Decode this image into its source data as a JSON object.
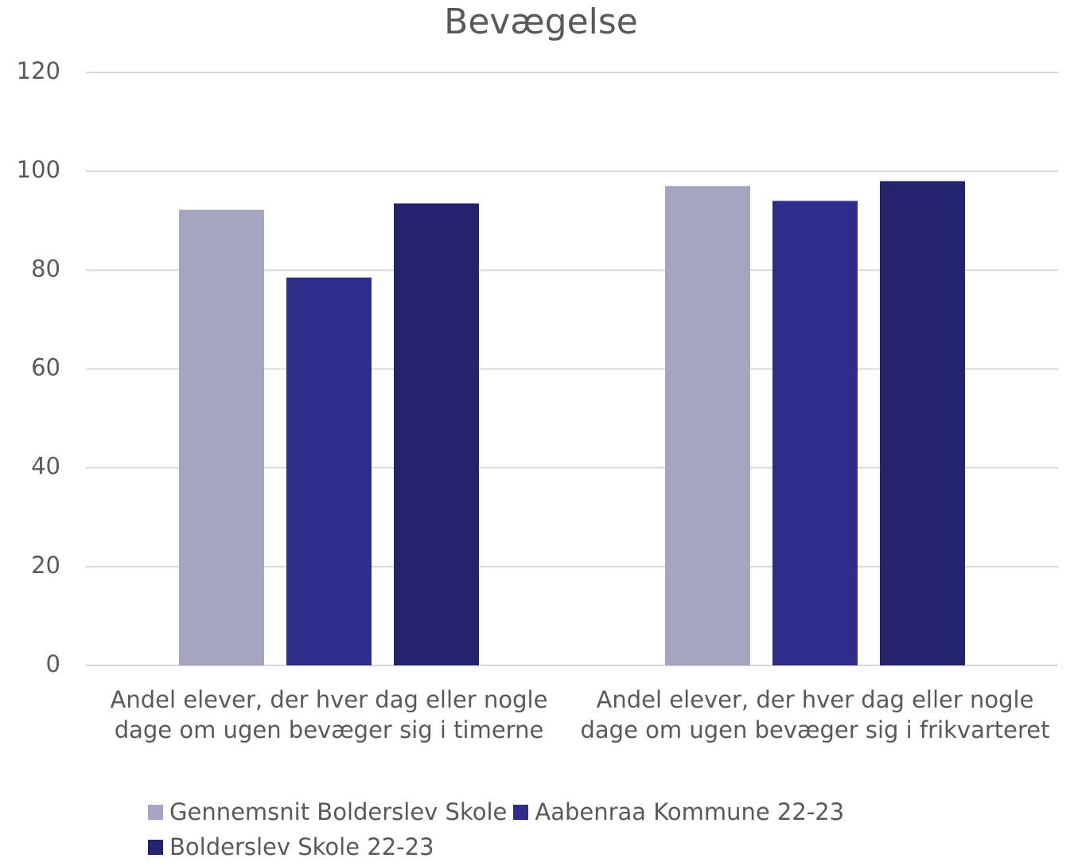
{
  "chart_data": {
    "type": "bar",
    "title": "Bevægelse",
    "categories": [
      "Andel elever, der hver dag eller nogle dage om ugen bevæger sig i timerne",
      "Andel elever, der hver dag eller nogle dage om ugen bevæger sig i frikvarteret"
    ],
    "series": [
      {
        "name": "Gennemsnit Bolderslev Skole",
        "color": "#a5a5c1",
        "values": [
          92.2,
          97
        ]
      },
      {
        "name": "Aabenraa Kommune 22-23",
        "color": "#2e2e8a",
        "values": [
          78.5,
          94
        ]
      },
      {
        "name": "Bolderslev Skole 22-23",
        "color": "#23236e",
        "values": [
          93.5,
          98
        ]
      }
    ],
    "ylim": [
      0,
      120
    ],
    "yticks": [
      0,
      20,
      40,
      60,
      80,
      100,
      120
    ],
    "grid": true
  }
}
